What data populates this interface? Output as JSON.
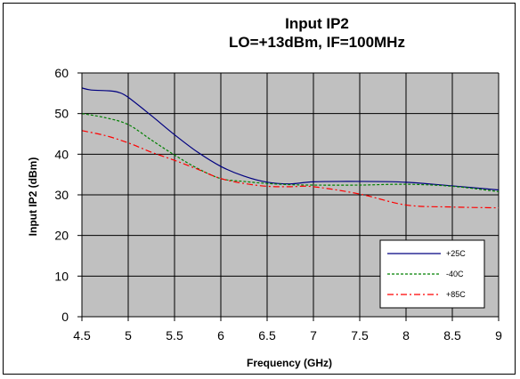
{
  "chart_data": {
    "type": "line",
    "title": "Input IP2",
    "subtitle": "LO=+13dBm, IF=100MHz",
    "xlabel": "Frequency (GHz)",
    "ylabel": "Input IP2 (dBm)",
    "xlim": [
      4.5,
      9
    ],
    "ylim": [
      0,
      60
    ],
    "x_ticks": [
      "4.5",
      "5",
      "5.5",
      "6",
      "6.5",
      "7",
      "7.5",
      "8",
      "8.5",
      "9"
    ],
    "y_ticks": [
      "0",
      "10",
      "20",
      "30",
      "40",
      "50",
      "60"
    ],
    "grid": true,
    "legend_position": "bottom-right",
    "plot_background": "#c0c0c0",
    "series": [
      {
        "name": "+25C",
        "color": "#000080",
        "dash": "solid",
        "x": [
          4.5,
          4.6,
          4.8,
          4.9,
          5.0,
          5.25,
          5.5,
          5.75,
          6.0,
          6.25,
          6.5,
          6.75,
          7.0,
          7.5,
          8.0,
          8.5,
          9.0
        ],
        "y": [
          56.3,
          55.8,
          55.6,
          55.2,
          54.0,
          49.5,
          44.8,
          40.5,
          37.0,
          34.6,
          33.1,
          32.7,
          33.2,
          33.3,
          33.1,
          32.2,
          31.2
        ]
      },
      {
        "name": "-40C",
        "color": "#008000",
        "dash": "dashed",
        "x": [
          4.5,
          4.75,
          5.0,
          5.25,
          5.5,
          5.75,
          6.0,
          6.25,
          6.5,
          6.75,
          7.0,
          7.5,
          8.0,
          8.5,
          9.0
        ],
        "y": [
          50.0,
          49.0,
          47.3,
          43.5,
          39.8,
          36.5,
          34.0,
          33.3,
          32.8,
          32.5,
          32.4,
          32.4,
          32.6,
          32.1,
          30.8
        ]
      },
      {
        "name": "+85C",
        "color": "#ff0000",
        "dash": "dashdot",
        "x": [
          4.5,
          4.75,
          5.0,
          5.25,
          5.5,
          5.75,
          6.0,
          6.25,
          6.5,
          6.75,
          7.0,
          7.5,
          8.0,
          8.5,
          9.0
        ],
        "y": [
          45.8,
          44.6,
          42.8,
          40.5,
          38.5,
          36.3,
          34.0,
          32.8,
          32.1,
          32.0,
          32.0,
          30.2,
          27.5,
          27.0,
          26.8
        ]
      }
    ]
  }
}
